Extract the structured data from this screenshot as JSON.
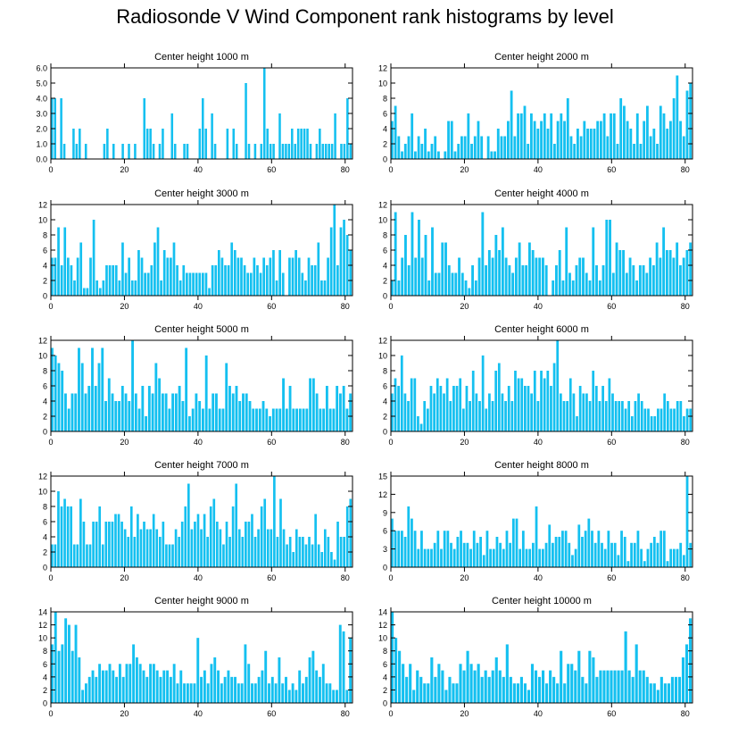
{
  "page": {
    "title": "Radiosonde V Wind Component rank histograms by level",
    "bar_color": "#14c0f0",
    "frame_color": "#000000"
  },
  "chart_data": [
    {
      "type": "bar",
      "title": "Center height 1000 m",
      "xlabel": "",
      "ylabel": "",
      "xlim": [
        0,
        82
      ],
      "ylim": [
        0,
        6
      ],
      "xticks": [
        0,
        20,
        40,
        60,
        80
      ],
      "yticks": [
        0.0,
        1.0,
        2.0,
        3.0,
        4.0,
        5.0,
        6.0
      ],
      "ytick_labels": [
        "0.0",
        "1.0",
        "2.0",
        "3.0",
        "4.0",
        "5.0",
        "6.0"
      ],
      "values": [
        4,
        4,
        0,
        4,
        1,
        0,
        0,
        2,
        1,
        2,
        0,
        1,
        0,
        0,
        0,
        0,
        0,
        1,
        2,
        0,
        1,
        0,
        0,
        1,
        0,
        1,
        0,
        1,
        0,
        0,
        4,
        2,
        2,
        1,
        0,
        1,
        2,
        0,
        0,
        3,
        1,
        0,
        0,
        1,
        1,
        0,
        0,
        0,
        2,
        4,
        2,
        0,
        3,
        1,
        0,
        0,
        0,
        2,
        0,
        2,
        1,
        0,
        0,
        5,
        1,
        0,
        1,
        0,
        1,
        6,
        2,
        1,
        1,
        0,
        3,
        1,
        1,
        1,
        2,
        1,
        2,
        2,
        2,
        2,
        1,
        0,
        1,
        2,
        1,
        1,
        1,
        1,
        3,
        0,
        1,
        1,
        4,
        1
      ]
    },
    {
      "type": "bar",
      "title": "Center height 2000 m",
      "xlabel": "",
      "ylabel": "",
      "xlim": [
        0,
        82
      ],
      "ylim": [
        0,
        12
      ],
      "xticks": [
        0,
        20,
        40,
        60,
        80
      ],
      "yticks": [
        0,
        2,
        4,
        6,
        8,
        10,
        12
      ],
      "ytick_labels": [
        "0",
        "2",
        "4",
        "6",
        "8",
        "10",
        "12"
      ],
      "values": [
        5,
        7,
        3,
        1,
        2,
        3,
        6,
        1,
        3,
        2,
        4,
        1,
        2,
        3,
        1,
        0,
        1,
        5,
        5,
        1,
        2,
        3,
        3,
        6,
        2,
        3,
        5,
        3,
        0,
        3,
        1,
        1,
        4,
        3,
        3,
        5,
        9,
        3,
        6,
        6,
        7,
        2,
        6,
        5,
        4,
        5,
        6,
        4,
        6,
        2,
        5,
        6,
        5,
        8,
        3,
        2,
        4,
        3,
        5,
        4,
        4,
        4,
        5,
        5,
        6,
        3,
        6,
        6,
        2,
        8,
        7,
        5,
        4,
        2,
        6,
        2,
        5,
        7,
        3,
        4,
        2,
        7,
        6,
        4,
        5,
        8,
        11,
        5,
        3,
        9,
        10
      ]
    },
    {
      "type": "bar",
      "title": "Center height 3000 m",
      "xlabel": "",
      "ylabel": "",
      "xlim": [
        0,
        82
      ],
      "ylim": [
        0,
        12
      ],
      "xticks": [
        0,
        20,
        40,
        60,
        80
      ],
      "yticks": [
        0,
        2,
        4,
        6,
        8,
        10,
        12
      ],
      "ytick_labels": [
        "0",
        "2",
        "4",
        "6",
        "8",
        "10",
        "12"
      ],
      "values": [
        5,
        5,
        9,
        4,
        9,
        5,
        4,
        2,
        5,
        7,
        1,
        1,
        5,
        10,
        2,
        1,
        2,
        4,
        4,
        4,
        4,
        2,
        7,
        3,
        5,
        2,
        2,
        6,
        5,
        3,
        3,
        4,
        7,
        9,
        2,
        6,
        5,
        5,
        7,
        4,
        2,
        4,
        3,
        3,
        3,
        3,
        3,
        3,
        3,
        1,
        4,
        4,
        6,
        5,
        4,
        4,
        7,
        6,
        5,
        5,
        4,
        3,
        3,
        5,
        4,
        3,
        5,
        4,
        5,
        6,
        2,
        6,
        3,
        0,
        5,
        5,
        6,
        5,
        3,
        2,
        5,
        4,
        4,
        7,
        2,
        2,
        5,
        9,
        12,
        4,
        9,
        10,
        8,
        6
      ]
    },
    {
      "type": "bar",
      "title": "Center height 4000 m",
      "xlabel": "",
      "ylabel": "",
      "xlim": [
        0,
        82
      ],
      "ylim": [
        0,
        12
      ],
      "xticks": [
        0,
        20,
        40,
        60,
        80
      ],
      "yticks": [
        0,
        2,
        4,
        6,
        8,
        10,
        12
      ],
      "ytick_labels": [
        "0",
        "2",
        "4",
        "6",
        "8",
        "10",
        "12"
      ],
      "values": [
        2,
        11,
        2,
        5,
        8,
        4,
        11,
        5,
        10,
        5,
        8,
        2,
        9,
        3,
        3,
        7,
        7,
        4,
        3,
        3,
        5,
        3,
        2,
        1,
        4,
        2,
        5,
        11,
        4,
        6,
        5,
        8,
        6,
        9,
        5,
        4,
        3,
        5,
        7,
        4,
        4,
        7,
        6,
        5,
        5,
        5,
        4,
        0,
        2,
        4,
        6,
        2,
        9,
        3,
        2,
        4,
        5,
        5,
        3,
        2,
        9,
        4,
        2,
        4,
        10,
        10,
        3,
        7,
        6,
        6,
        3,
        5,
        4,
        2,
        4,
        4,
        3,
        5,
        4,
        7,
        5,
        9,
        6,
        6,
        5,
        7,
        4,
        5,
        6,
        7
      ]
    },
    {
      "type": "bar",
      "title": "Center height 5000 m",
      "xlabel": "",
      "ylabel": "",
      "xlim": [
        0,
        82
      ],
      "ylim": [
        0,
        12
      ],
      "xticks": [
        0,
        20,
        40,
        60,
        80
      ],
      "yticks": [
        0,
        2,
        4,
        6,
        8,
        10,
        12
      ],
      "ytick_labels": [
        "0",
        "2",
        "4",
        "6",
        "8",
        "10",
        "12"
      ],
      "values": [
        11,
        10,
        9,
        8,
        5,
        3,
        5,
        5,
        11,
        9,
        5,
        6,
        11,
        6,
        9,
        11,
        4,
        7,
        5,
        4,
        4,
        6,
        5,
        4,
        12,
        5,
        3,
        6,
        2,
        6,
        5,
        9,
        7,
        5,
        5,
        3,
        5,
        5,
        6,
        4,
        11,
        2,
        3,
        5,
        4,
        3,
        10,
        3,
        5,
        5,
        3,
        3,
        9,
        6,
        5,
        6,
        4,
        5,
        5,
        4,
        3,
        3,
        3,
        4,
        3,
        2,
        3,
        3,
        3,
        7,
        3,
        6,
        3,
        3,
        3,
        3,
        3,
        7,
        7,
        5,
        3,
        3,
        6,
        3,
        3,
        6,
        5,
        6,
        3,
        5
      ]
    },
    {
      "type": "bar",
      "title": "Center height 6000 m",
      "xlabel": "",
      "ylabel": "",
      "xlim": [
        0,
        82
      ],
      "ylim": [
        0,
        12
      ],
      "xticks": [
        0,
        20,
        40,
        60,
        80
      ],
      "yticks": [
        0,
        2,
        4,
        6,
        8,
        10,
        12
      ],
      "ytick_labels": [
        "0",
        "2",
        "4",
        "6",
        "8",
        "10",
        "12"
      ],
      "values": [
        5,
        7,
        6,
        10,
        5,
        4,
        7,
        7,
        2,
        1,
        4,
        3,
        6,
        5,
        7,
        6,
        5,
        7,
        4,
        6,
        6,
        7,
        3,
        6,
        4,
        8,
        5,
        4,
        10,
        3,
        5,
        4,
        8,
        9,
        5,
        4,
        6,
        4,
        8,
        7,
        7,
        6,
        6,
        5,
        8,
        4,
        8,
        7,
        8,
        6,
        9,
        12,
        5,
        4,
        4,
        7,
        5,
        2,
        6,
        5,
        5,
        4,
        8,
        6,
        4,
        6,
        4,
        7,
        5,
        4,
        4,
        4,
        3,
        4,
        2,
        4,
        5,
        4,
        3,
        3,
        2,
        2,
        3,
        3,
        5,
        4,
        3,
        3,
        4,
        4,
        2,
        3,
        3
      ]
    },
    {
      "type": "bar",
      "title": "Center height 7000 m",
      "xlabel": "",
      "ylabel": "",
      "xlim": [
        0,
        82
      ],
      "ylim": [
        0,
        12
      ],
      "xticks": [
        0,
        20,
        40,
        60,
        80
      ],
      "yticks": [
        0,
        2,
        4,
        6,
        8,
        10,
        12
      ],
      "ytick_labels": [
        "0",
        "2",
        "4",
        "6",
        "8",
        "10",
        "12"
      ],
      "values": [
        3,
        3,
        10,
        8,
        9,
        8,
        8,
        3,
        3,
        9,
        6,
        3,
        3,
        6,
        6,
        8,
        3,
        6,
        6,
        6,
        7,
        7,
        6,
        5,
        4,
        8,
        4,
        7,
        5,
        6,
        5,
        5,
        7,
        5,
        4,
        6,
        3,
        3,
        3,
        5,
        4,
        6,
        8,
        11,
        5,
        6,
        7,
        5,
        7,
        4,
        8,
        9,
        6,
        5,
        3,
        6,
        4,
        8,
        11,
        5,
        4,
        6,
        6,
        7,
        4,
        5,
        8,
        9,
        5,
        5,
        12,
        4,
        9,
        5,
        3,
        4,
        2,
        5,
        4,
        4,
        3,
        4,
        3,
        7,
        3,
        2,
        5,
        4,
        2,
        1,
        6,
        4,
        4,
        8,
        9
      ]
    },
    {
      "type": "bar",
      "title": "Center height 8000 m",
      "xlabel": "",
      "ylabel": "",
      "xlim": [
        0,
        82
      ],
      "ylim": [
        0,
        15
      ],
      "xticks": [
        0,
        20,
        40,
        60,
        80
      ],
      "yticks": [
        0,
        3,
        6,
        9,
        12,
        15
      ],
      "ytick_labels": [
        "0",
        "3",
        "6",
        "9",
        "12",
        "15"
      ],
      "values": [
        8,
        6,
        6,
        6,
        5,
        10,
        8,
        6,
        3,
        6,
        3,
        3,
        3,
        4,
        6,
        3,
        6,
        6,
        4,
        3,
        5,
        6,
        4,
        4,
        3,
        6,
        4,
        5,
        2,
        6,
        3,
        3,
        5,
        4,
        3,
        6,
        4,
        8,
        8,
        3,
        6,
        3,
        3,
        4,
        10,
        3,
        3,
        4,
        7,
        4,
        5,
        5,
        6,
        6,
        4,
        2,
        3,
        7,
        5,
        6,
        8,
        6,
        4,
        6,
        4,
        3,
        6,
        4,
        4,
        2,
        6,
        5,
        1,
        4,
        4,
        6,
        3,
        1,
        3,
        4,
        5,
        4,
        6,
        6,
        1,
        3,
        3,
        3,
        4,
        2,
        15,
        4
      ]
    },
    {
      "type": "bar",
      "title": "Center height 9000 m",
      "xlabel": "",
      "ylabel": "",
      "xlim": [
        0,
        82
      ],
      "ylim": [
        0,
        14
      ],
      "xticks": [
        0,
        20,
        40,
        60,
        80
      ],
      "yticks": [
        0,
        2,
        4,
        6,
        8,
        10,
        12,
        14
      ],
      "ytick_labels": [
        "0",
        "2",
        "4",
        "6",
        "8",
        "10",
        "12",
        "14"
      ],
      "values": [
        9,
        14,
        8,
        9,
        13,
        12,
        8,
        12,
        7,
        2,
        3,
        4,
        5,
        4,
        6,
        5,
        5,
        6,
        5,
        4,
        6,
        4,
        6,
        6,
        9,
        7,
        6,
        5,
        4,
        6,
        6,
        5,
        4,
        5,
        5,
        4,
        6,
        3,
        5,
        3,
        3,
        3,
        3,
        10,
        4,
        5,
        3,
        6,
        7,
        5,
        3,
        4,
        5,
        4,
        4,
        3,
        3,
        9,
        6,
        3,
        3,
        4,
        5,
        8,
        3,
        4,
        3,
        7,
        3,
        4,
        2,
        3,
        2,
        5,
        3,
        4,
        7,
        8,
        5,
        4,
        6,
        3,
        3,
        2,
        2,
        12,
        11,
        2,
        10
      ]
    },
    {
      "type": "bar",
      "title": "Center height 10000 m",
      "xlabel": "",
      "ylabel": "",
      "xlim": [
        0,
        82
      ],
      "ylim": [
        0,
        14
      ],
      "xticks": [
        0,
        20,
        40,
        60,
        80
      ],
      "yticks": [
        0,
        2,
        4,
        6,
        8,
        10,
        12,
        14
      ],
      "ytick_labels": [
        "0",
        "2",
        "4",
        "6",
        "8",
        "10",
        "12",
        "14"
      ],
      "values": [
        14,
        10,
        8,
        6,
        4,
        6,
        2,
        5,
        4,
        3,
        3,
        7,
        4,
        6,
        5,
        2,
        4,
        3,
        3,
        6,
        5,
        8,
        6,
        5,
        6,
        4,
        5,
        4,
        5,
        7,
        5,
        4,
        9,
        4,
        3,
        3,
        4,
        3,
        2,
        6,
        5,
        4,
        5,
        3,
        5,
        4,
        3,
        8,
        3,
        6,
        6,
        5,
        8,
        4,
        3,
        8,
        7,
        4,
        5,
        5,
        5,
        5,
        5,
        5,
        5,
        11,
        5,
        4,
        9,
        5,
        5,
        4,
        3,
        3,
        2,
        4,
        3,
        3,
        4,
        4,
        4,
        7,
        9,
        13
      ]
    }
  ]
}
